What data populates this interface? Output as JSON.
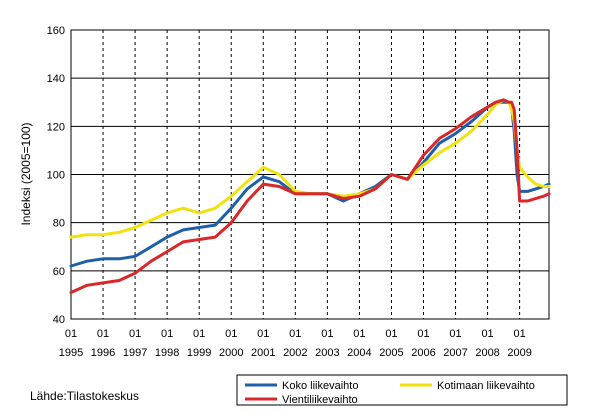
{
  "chart_data": {
    "type": "line",
    "title": "",
    "xlabel": "",
    "ylabel": "Indeksi (2005=100)",
    "ylim": [
      40,
      160
    ],
    "yticks": [
      "40",
      "60",
      "80",
      "100",
      "120",
      "140",
      "160"
    ],
    "xlim": [
      1995.0,
      2009.917
    ],
    "x_tick_month": "01",
    "x_tick_years": [
      "1995",
      "1996",
      "1997",
      "1998",
      "1999",
      "2000",
      "2001",
      "2002",
      "2003",
      "2004",
      "2005",
      "2006",
      "2007",
      "2008",
      "2009"
    ],
    "grid": {
      "horizontal": "solid",
      "vertical": "dashed"
    },
    "legend_position": "bottom-right",
    "source": "Lähde:Tilastokeskus",
    "x": [
      1995.0,
      1995.5,
      1996.0,
      1996.5,
      1997.0,
      1997.5,
      1998.0,
      1998.5,
      1999.0,
      1999.5,
      2000.0,
      2000.5,
      2001.0,
      2001.5,
      2002.0,
      2002.5,
      2003.0,
      2003.5,
      2004.0,
      2004.5,
      2005.0,
      2005.5,
      2006.0,
      2006.5,
      2007.0,
      2007.5,
      2008.0,
      2008.25,
      2008.5,
      2008.67,
      2008.75,
      2008.83,
      2008.92,
      2009.0,
      2009.25,
      2009.5,
      2009.75,
      2009.917
    ],
    "series": [
      {
        "name": "Koko liikevaihto",
        "color": "#1f5fa8",
        "values": [
          62,
          64,
          65,
          65,
          66,
          70,
          74,
          77,
          78,
          79,
          86,
          94,
          99,
          97,
          92,
          92,
          92,
          89,
          92,
          95,
          100,
          98,
          105,
          113,
          117,
          122,
          128,
          130,
          130,
          130,
          128,
          118,
          100,
          93,
          93,
          94,
          95,
          96
        ]
      },
      {
        "name": "Kotimaan liikevaihto",
        "color": "#f2e20c",
        "values": [
          74,
          75,
          75,
          76,
          78,
          81,
          84,
          86,
          84,
          86,
          91,
          97,
          103,
          100,
          93,
          92,
          92,
          91,
          92,
          94,
          100,
          98,
          104,
          109,
          113,
          118,
          125,
          129,
          131,
          130,
          127,
          122,
          110,
          103,
          99,
          96,
          95,
          95
        ]
      },
      {
        "name": "Vientiliikevaihto",
        "color": "#d8282b",
        "values": [
          51,
          54,
          55,
          56,
          59,
          64,
          68,
          72,
          73,
          74,
          80,
          89,
          96,
          95,
          92,
          92,
          92,
          90,
          91,
          94,
          100,
          98,
          108,
          115,
          119,
          124,
          128,
          130,
          131,
          130,
          130,
          127,
          110,
          89,
          89,
          90,
          91,
          92
        ]
      }
    ]
  }
}
